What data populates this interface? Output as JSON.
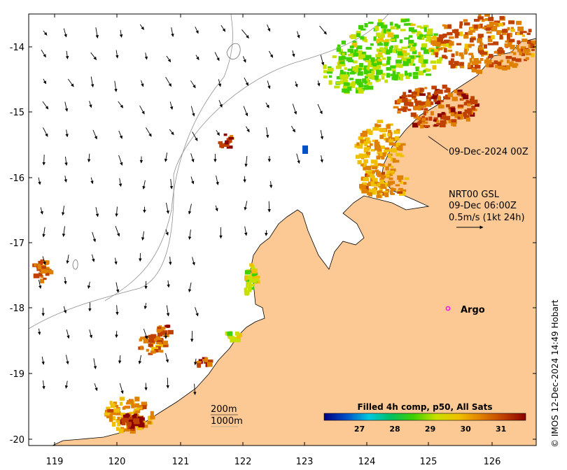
{
  "map": {
    "longitude_ticks": [
      "119",
      "120",
      "121",
      "122",
      "123",
      "124",
      "125",
      "126"
    ],
    "latitude_ticks": [
      "-14",
      "-15",
      "-16",
      "-17",
      "-18",
      "-19",
      "-20"
    ],
    "swath_label": "09-Dec-2024 00Z",
    "current_product_lines": [
      "NRT00 GSL",
      "09-Dec 06:00Z",
      "0.5m/s (1kt 24h)"
    ],
    "argo_label": "Argo",
    "isobath_labels": [
      "200m",
      "1000m"
    ],
    "colors": {
      "land": "#fcc994",
      "ocean": "#ffffff",
      "argo_marker": "#ff00ff",
      "isobath": "#909090"
    }
  },
  "colorbar": {
    "title": "Filled 4h comp, p50, All Sats",
    "ticks": [
      "27",
      "28",
      "29",
      "30",
      "31"
    ],
    "range": [
      26.0,
      31.7
    ],
    "stops": [
      "#00007f",
      "#0050c8",
      "#00c8e0",
      "#00c060",
      "#40d000",
      "#c8e000",
      "#f0c000",
      "#e08000",
      "#c04000",
      "#8a0000"
    ]
  },
  "credit": "© IMOS 12-Dec-2024 14:49 Hobart"
}
